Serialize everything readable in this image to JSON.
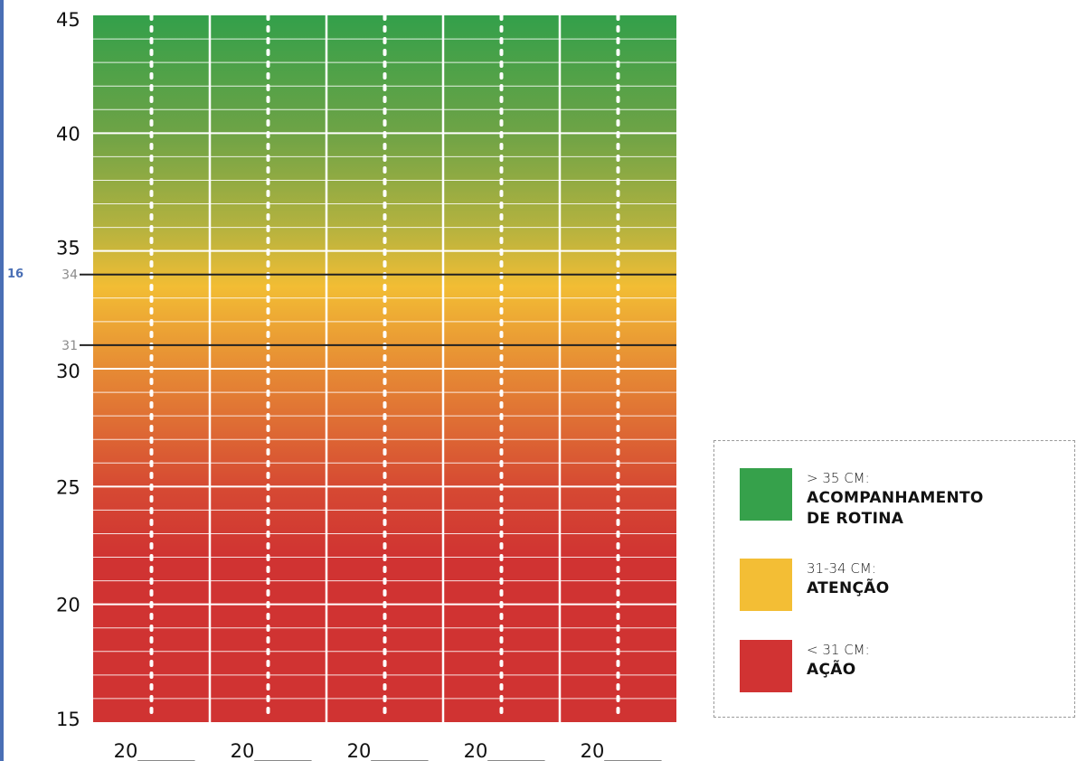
{
  "page": {
    "number": "16",
    "rule_color": "#4a6fb5"
  },
  "chart_data": {
    "type": "heatmap",
    "title": "",
    "xlabel": "",
    "ylabel": "",
    "ylim": [
      15,
      45
    ],
    "y_ticks": [
      15,
      20,
      25,
      30,
      35,
      40,
      45
    ],
    "x_labels": [
      "20______",
      "20______",
      "20______",
      "20______",
      "20______"
    ],
    "thresholds": [
      {
        "value": 34,
        "label": "34"
      },
      {
        "value": 31,
        "label": "31"
      }
    ],
    "gradient_stops": [
      {
        "value": 45,
        "color": "#33a04a"
      },
      {
        "value": 40,
        "color": "#6ea346"
      },
      {
        "value": 36,
        "color": "#b4b23f"
      },
      {
        "value": 33.5,
        "color": "#f2bd34"
      },
      {
        "value": 30,
        "color": "#e68b34"
      },
      {
        "value": 25,
        "color": "#d64a33"
      },
      {
        "value": 22,
        "color": "#d03332"
      },
      {
        "value": 15,
        "color": "#d03332"
      }
    ],
    "grid": true
  },
  "legend": {
    "items": [
      {
        "range": "> 35 CM:",
        "label": "ACOMPANHAMENTO\nDE ROTINA",
        "color": "#36a14b"
      },
      {
        "range": "31-34 CM:",
        "label": "ATENÇÃO",
        "color": "#f3be35"
      },
      {
        "range": "< 31 CM:",
        "label": "AÇÃO",
        "color": "#d13333"
      }
    ]
  }
}
